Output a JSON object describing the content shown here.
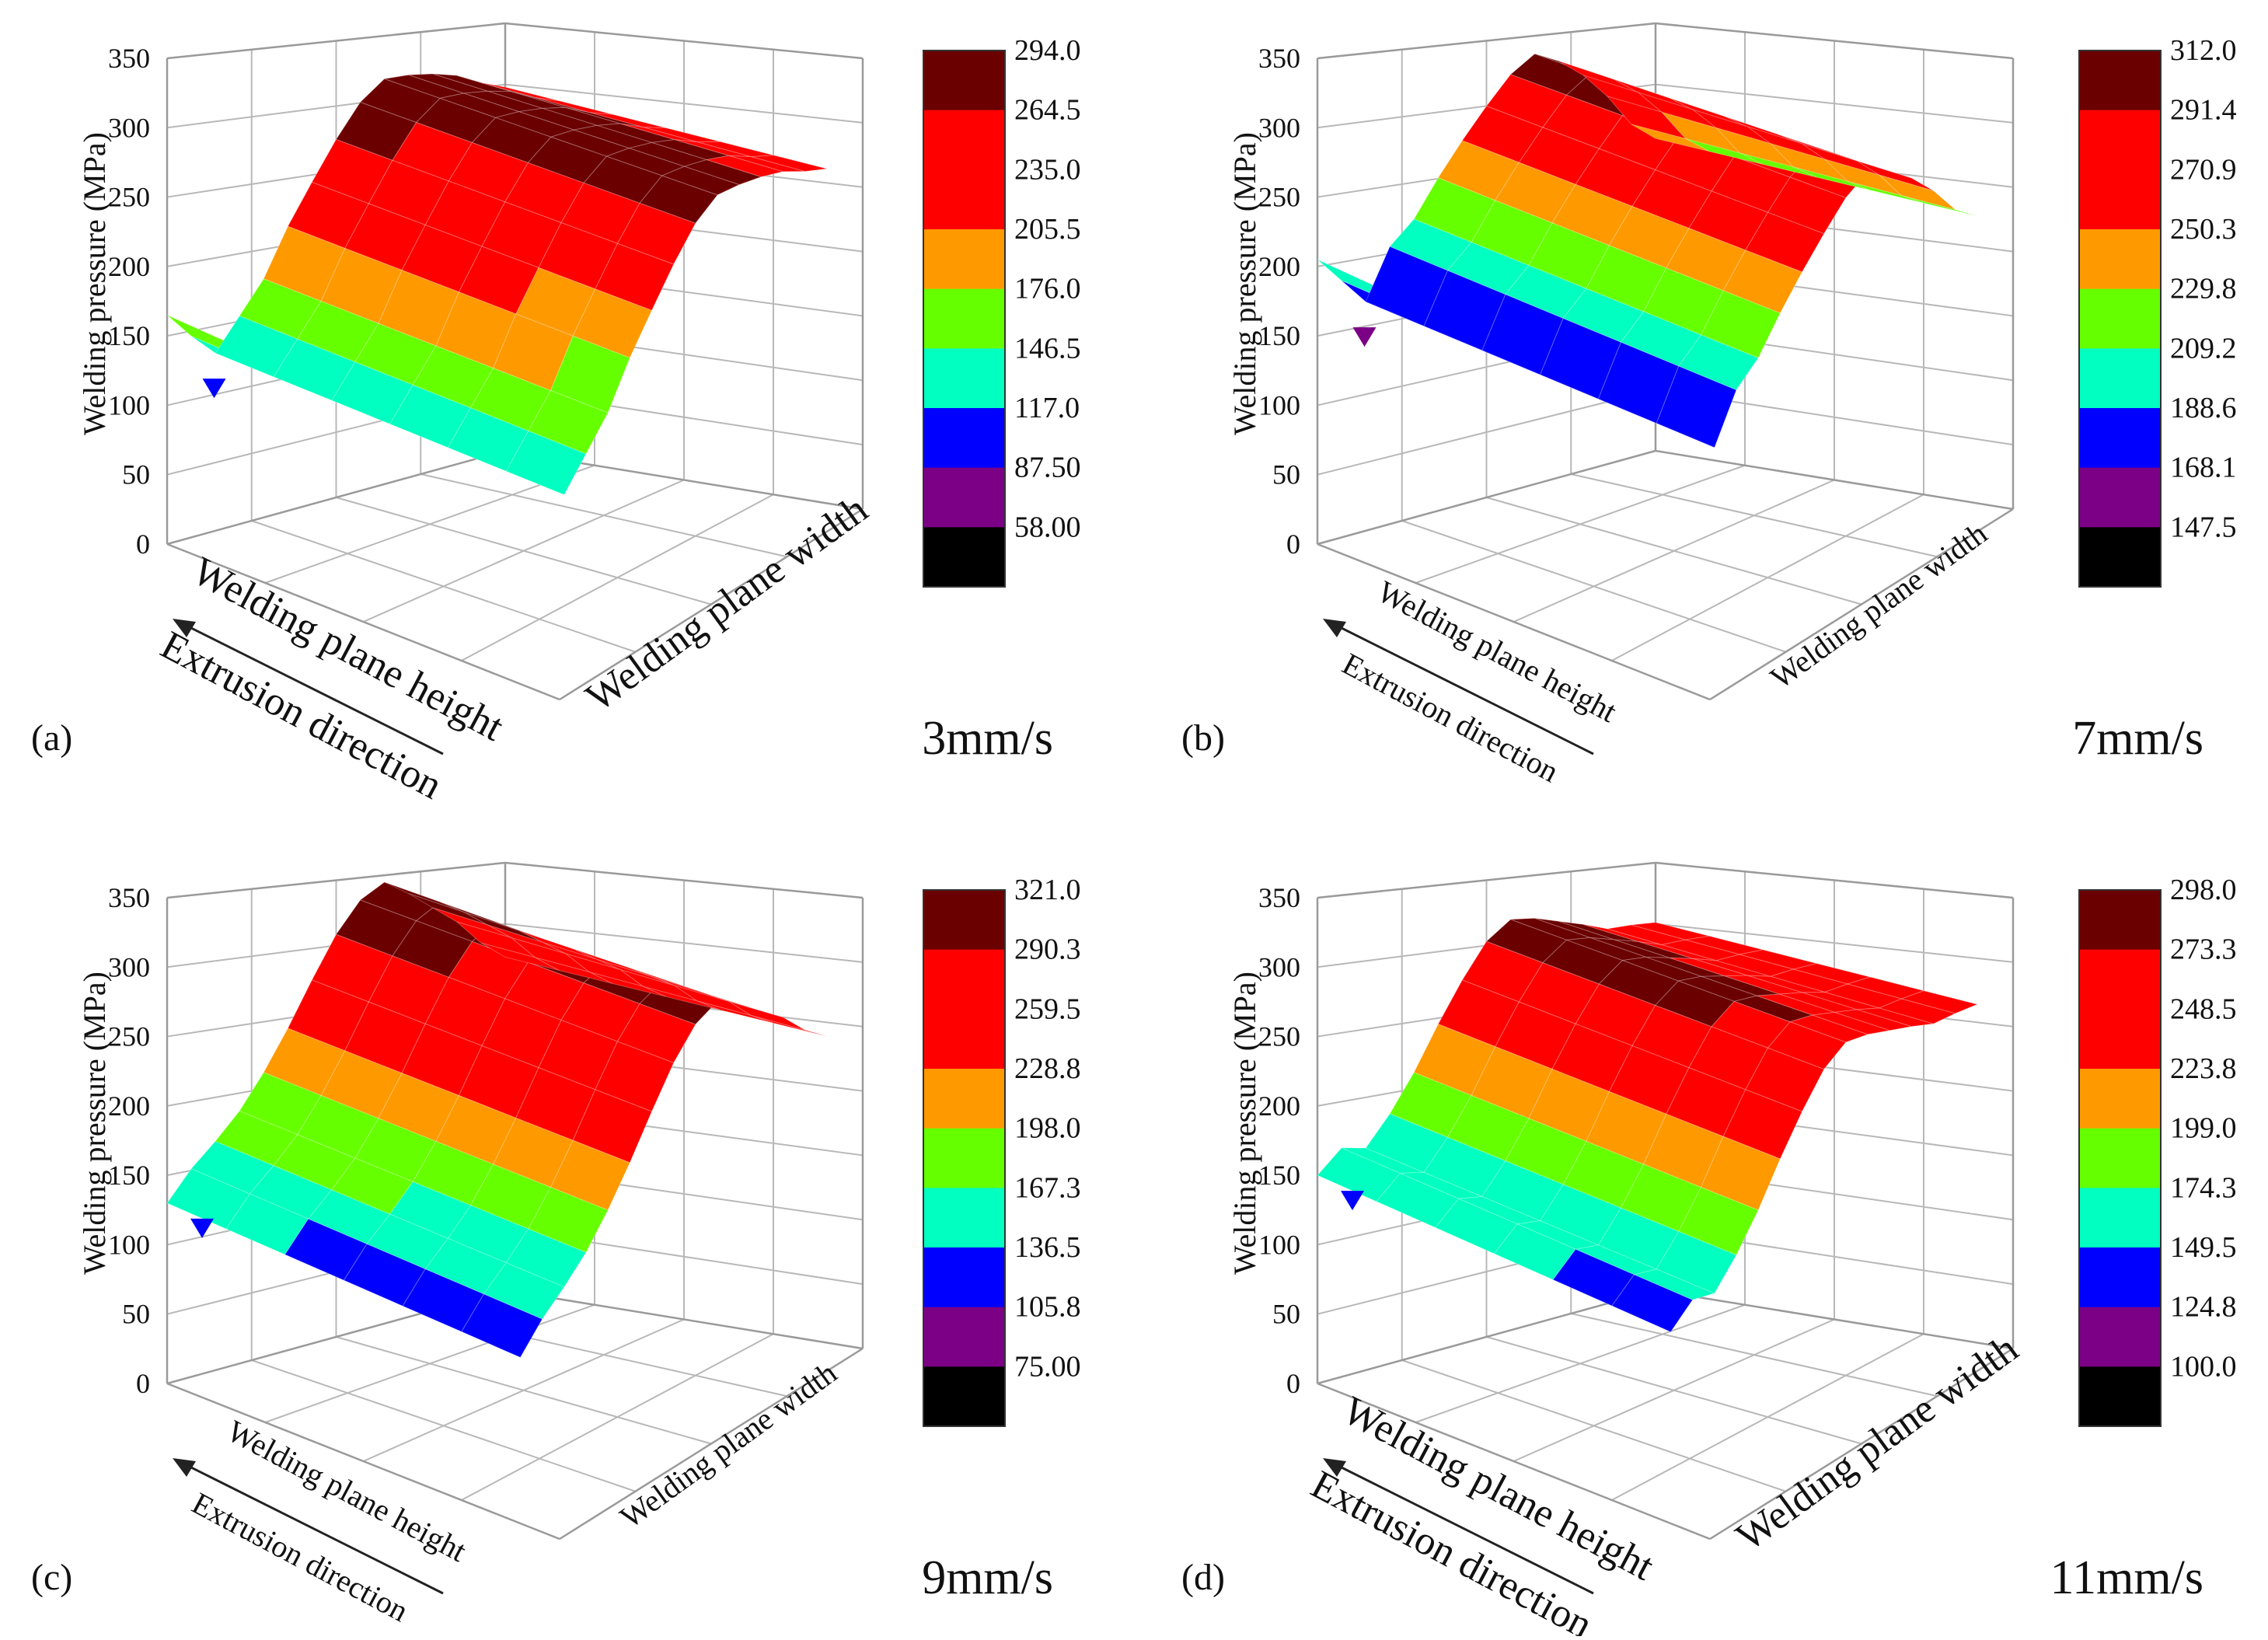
{
  "figure": {
    "background": "#ffffff"
  },
  "chart_data": [
    {
      "type": "surface3d",
      "panel_label": "(a)",
      "speed_label": "3mm/s",
      "zlabel": "Welding pressure (MPa)",
      "xlabel": "Welding plane height",
      "xlabel_sub": "Extrusion direction",
      "ylabel": "Welding plane width",
      "zlim": [
        0,
        350
      ],
      "z_ticks": [
        "0",
        "50",
        "100",
        "150",
        "200",
        "250",
        "300",
        "350"
      ],
      "colorbar_levels": [
        "294.0",
        "264.5",
        "235.0",
        "205.5",
        "176.0",
        "146.5",
        "117.0",
        "87.50",
        "58.00"
      ],
      "colorbar_colors": [
        "#6b0000",
        "#ff0000",
        "#ff0000",
        "#ff9900",
        "#66ff00",
        "#00ffc0",
        "#0000ff",
        "#7b0085",
        "#000000"
      ],
      "surface_profile": [
        165,
        145,
        128,
        150,
        172,
        205,
        232,
        258,
        280,
        292,
        290,
        286,
        280,
        270,
        262
      ],
      "min_color": "#0000ff",
      "big_title": true
    },
    {
      "type": "surface3d",
      "panel_label": "(b)",
      "speed_label": "7mm/s",
      "zlabel": "Welding pressure (MPa)",
      "xlabel": "Welding plane height",
      "xlabel_sub": "Extrusion direction",
      "ylabel": "Welding plane width",
      "zlim": [
        0,
        350
      ],
      "z_ticks": [
        "0",
        "50",
        "100",
        "150",
        "200",
        "250",
        "300",
        "350"
      ],
      "colorbar_levels": [
        "312.0",
        "291.4",
        "270.9",
        "250.3",
        "229.8",
        "209.2",
        "188.6",
        "168.1",
        "147.5"
      ],
      "colorbar_colors": [
        "#6b0000",
        "#ff0000",
        "#ff0000",
        "#ff9900",
        "#66ff00",
        "#00ffc0",
        "#0000ff",
        "#7b0085",
        "#000000"
      ],
      "surface_profile": [
        205,
        185,
        165,
        200,
        215,
        240,
        262,
        282,
        300,
        310,
        300,
        285,
        265,
        240,
        225
      ],
      "min_color": "#7b0085",
      "big_title": false
    },
    {
      "type": "surface3d",
      "panel_label": "(c)",
      "speed_label": "9mm/s",
      "zlabel": "Welding  pressure (MPa)",
      "xlabel": "Welding plane height",
      "xlabel_sub": "Extrusion direction",
      "ylabel": "Welding plane width",
      "zlim": [
        0,
        350
      ],
      "z_ticks": [
        "0",
        "50",
        "100",
        "150",
        "200",
        "250",
        "300",
        "350"
      ],
      "colorbar_levels": [
        "321.0",
        "290.3",
        "259.5",
        "228.8",
        "198.0",
        "167.3",
        "136.5",
        "105.8",
        "75.00"
      ],
      "colorbar_colors": [
        "#6b0000",
        "#ff0000",
        "#ff0000",
        "#ff9900",
        "#66ff00",
        "#00ffc0",
        "#0000ff",
        "#7b0085",
        "#000000"
      ],
      "surface_profile": [
        130,
        150,
        165,
        182,
        205,
        232,
        262,
        290,
        310,
        318,
        305,
        290,
        275,
        255,
        240
      ],
      "min_color": "#0000ff",
      "big_title": false
    },
    {
      "type": "surface3d",
      "panel_label": "(d)",
      "speed_label": "11mm/s",
      "zlabel": "Welding pressure (MPa)",
      "xlabel": "Welding plane height",
      "xlabel_sub": "Extrusion direction",
      "ylabel": "Welding plane width",
      "zlim": [
        0,
        350
      ],
      "z_ticks": [
        "0",
        "50",
        "100",
        "150",
        "200",
        "250",
        "300",
        "350"
      ],
      "colorbar_levels": [
        "298.0",
        "273.3",
        "248.5",
        "223.8",
        "199.0",
        "174.3",
        "149.5",
        "124.8",
        "100.0"
      ],
      "colorbar_colors": [
        "#6b0000",
        "#ff0000",
        "#ff0000",
        "#ff9900",
        "#66ff00",
        "#00ffc0",
        "#0000ff",
        "#7b0085",
        "#000000"
      ],
      "surface_profile": [
        150,
        165,
        160,
        180,
        205,
        235,
        262,
        285,
        296,
        292,
        285,
        278,
        270,
        268,
        265
      ],
      "min_color": "#0000ff",
      "big_title": true
    }
  ]
}
